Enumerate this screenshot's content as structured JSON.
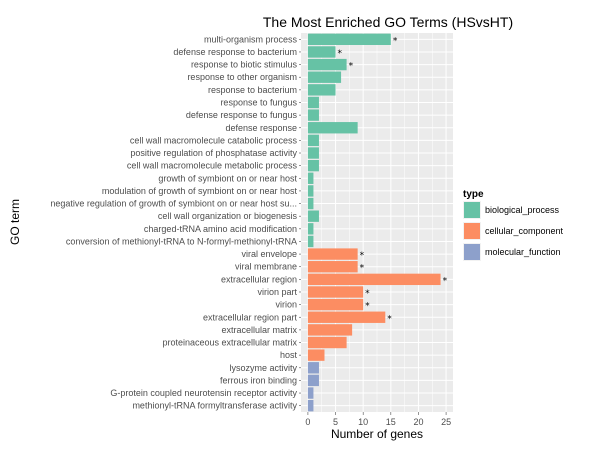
{
  "chart_data": {
    "type": "bar",
    "orientation": "horizontal",
    "title": "The Most Enriched GO Terms (HSvsHT)",
    "xlabel": "Number of genes",
    "ylabel": "GO term",
    "xlim": [
      0,
      25
    ],
    "xticks": [
      0,
      5,
      10,
      15,
      20,
      25
    ],
    "grid": true,
    "legend": {
      "title": "type",
      "placement": "right",
      "entries": [
        {
          "label": "biological_process",
          "color": "#66c2a5"
        },
        {
          "label": "cellular_component",
          "color": "#fc8d62"
        },
        {
          "label": "molecular_function",
          "color": "#8da0cb"
        }
      ]
    },
    "mark_symbol": "*",
    "bars": [
      {
        "term": "multi-organism process",
        "value": 15,
        "type": "biological_process",
        "marked": true
      },
      {
        "term": "defense response to bacterium",
        "value": 5,
        "type": "biological_process",
        "marked": true
      },
      {
        "term": "response to biotic stimulus",
        "value": 7,
        "type": "biological_process",
        "marked": true
      },
      {
        "term": "response to other organism",
        "value": 6,
        "type": "biological_process",
        "marked": false
      },
      {
        "term": "response to bacterium",
        "value": 5,
        "type": "biological_process",
        "marked": false
      },
      {
        "term": "response to fungus",
        "value": 2,
        "type": "biological_process",
        "marked": false
      },
      {
        "term": "defense response to fungus",
        "value": 2,
        "type": "biological_process",
        "marked": false
      },
      {
        "term": "defense response",
        "value": 9,
        "type": "biological_process",
        "marked": false
      },
      {
        "term": "cell wall macromolecule catabolic process",
        "value": 2,
        "type": "biological_process",
        "marked": false
      },
      {
        "term": "positive regulation of phosphatase activity",
        "value": 2,
        "type": "biological_process",
        "marked": false
      },
      {
        "term": "cell wall macromolecule metabolic process",
        "value": 2,
        "type": "biological_process",
        "marked": false
      },
      {
        "term": "growth of symbiont on or near host",
        "value": 1,
        "type": "biological_process",
        "marked": false
      },
      {
        "term": "modulation of growth of symbiont on or near host",
        "value": 1,
        "type": "biological_process",
        "marked": false
      },
      {
        "term": "negative regulation of growth of symbiont on or near host su...",
        "value": 1,
        "type": "biological_process",
        "marked": false
      },
      {
        "term": "cell wall organization or biogenesis",
        "value": 2,
        "type": "biological_process",
        "marked": false
      },
      {
        "term": "charged-tRNA amino acid modification",
        "value": 1,
        "type": "biological_process",
        "marked": false
      },
      {
        "term": "conversion of methionyl-tRNA to N-formyl-methionyl-tRNA",
        "value": 1,
        "type": "biological_process",
        "marked": false
      },
      {
        "term": "viral envelope",
        "value": 9,
        "type": "cellular_component",
        "marked": true
      },
      {
        "term": "viral membrane",
        "value": 9,
        "type": "cellular_component",
        "marked": true
      },
      {
        "term": "extracellular region",
        "value": 24,
        "type": "cellular_component",
        "marked": true
      },
      {
        "term": "virion part",
        "value": 10,
        "type": "cellular_component",
        "marked": true
      },
      {
        "term": "virion",
        "value": 10,
        "type": "cellular_component",
        "marked": true
      },
      {
        "term": "extracellular region part",
        "value": 14,
        "type": "cellular_component",
        "marked": true
      },
      {
        "term": "extracellular matrix",
        "value": 8,
        "type": "cellular_component",
        "marked": false
      },
      {
        "term": "proteinaceous extracellular matrix",
        "value": 7,
        "type": "cellular_component",
        "marked": false
      },
      {
        "term": "host",
        "value": 3,
        "type": "cellular_component",
        "marked": false
      },
      {
        "term": "lysozyme activity",
        "value": 2,
        "type": "molecular_function",
        "marked": false
      },
      {
        "term": "ferrous iron binding",
        "value": 2,
        "type": "molecular_function",
        "marked": false
      },
      {
        "term": "G-protein coupled neurotensin receptor activity",
        "value": 1,
        "type": "molecular_function",
        "marked": false
      },
      {
        "term": "methionyl-tRNA formyltransferase activity",
        "value": 1,
        "type": "molecular_function",
        "marked": false
      }
    ],
    "colors": {
      "panel_background": "#ebebeb",
      "grid": "#ffffff"
    }
  }
}
